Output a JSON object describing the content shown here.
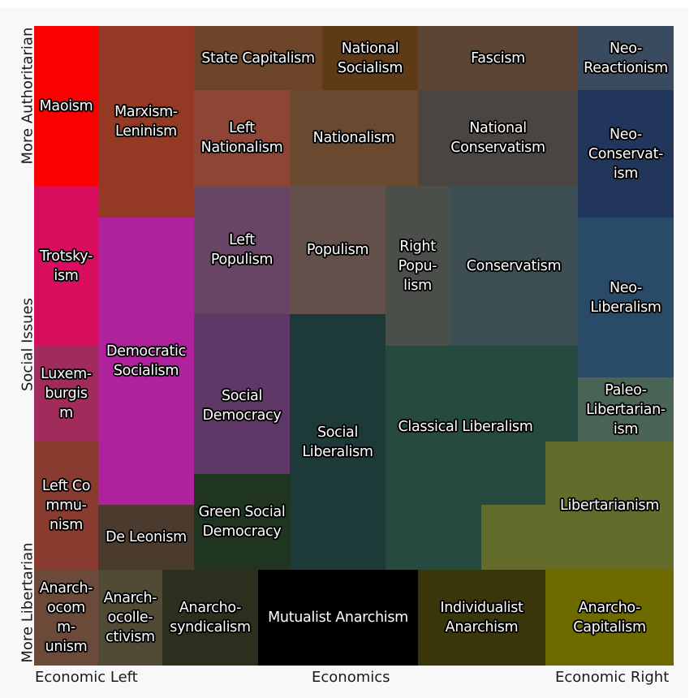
{
  "axes": {
    "y_top": "More Authoritarian",
    "y_mid": "Social Issues",
    "y_bottom": "More Libertarian",
    "x_left": "Economic Left",
    "x_mid": "Economics",
    "x_right": "Economic Right"
  },
  "ideologies": {
    "maoism": {
      "label": "Maoism",
      "color": "#fb0000"
    },
    "marxism_leninism": {
      "label": "Marxism-\nLeninism",
      "color": "#943a24"
    },
    "state_capitalism": {
      "label": "State Capitalism",
      "color": "#6d4529"
    },
    "national_socialism": {
      "label": "National\nSocialism",
      "color": "#5e3a17"
    },
    "fascism": {
      "label": "Fascism",
      "color": "#5c4633"
    },
    "neo_reactionism": {
      "label": "Neo-\nReactionism",
      "color": "#3b4b5f"
    },
    "left_nationalism": {
      "label": "Left\nNationalism",
      "color": "#8f4536"
    },
    "nationalism": {
      "label": "Nationalism",
      "color": "#694a30"
    },
    "national_conservatism": {
      "label": "National\nConservatism",
      "color": "#4a4541"
    },
    "neo_conservatism": {
      "label": "Neo-\nConservat-\nism",
      "color": "#21365a"
    },
    "trotskyism": {
      "label": "Trotsky-\nism",
      "color": "#d80d5e"
    },
    "democratic_socialism": {
      "label": "Democratic\nSocialism",
      "color": "#b0229c"
    },
    "left_populism": {
      "label": "Left\nPopulism",
      "color": "#684565"
    },
    "populism": {
      "label": "Populism",
      "color": "#63504a"
    },
    "right_populism": {
      "label": "Right\nPopu-\nlism",
      "color": "#4b4f49"
    },
    "conservatism": {
      "label": "Conservatism",
      "color": "#3d4e55"
    },
    "neo_liberalism": {
      "label": "Neo-\nLiberalism",
      "color": "#2a4b68"
    },
    "luxemburgism": {
      "label": "Luxem-\nburgis\nm",
      "color": "#a12c5c"
    },
    "social_democracy": {
      "label": "Social\nDemocracy",
      "color": "#5f3868"
    },
    "social_liberalism": {
      "label": "Social\nLiberalism",
      "color": "#1d3a38"
    },
    "classical_liberalism": {
      "label": "Classical Liberalism",
      "color": "#264a40"
    },
    "paleo_libertarianism": {
      "label": "Paleo-\nLibertarian-\nism",
      "color": "#4a6555"
    },
    "libertarianism": {
      "label": "Libertarianism",
      "color": "#636c2b"
    },
    "left_communism": {
      "label": "Left Co\nmmu-\nnism",
      "color": "#8a3b30"
    },
    "de_leonism": {
      "label": "De Leonism",
      "color": "#4b3b2f"
    },
    "green_social_democracy": {
      "label": "Green Social\nDemocracy",
      "color": "#1f3520"
    },
    "anarcho_communism": {
      "label": "Anarch-\nocom\nm-\nunism",
      "color": "#6b4a3a"
    },
    "anarcho_collectivism": {
      "label": "Anarch-\nocolle-\nctivism",
      "color": "#514b36"
    },
    "anarcho_syndicalism": {
      "label": "Anarcho-\nsyndicalism",
      "color": "#2e2e1e"
    },
    "mutualist_anarchism": {
      "label": "Mutualist Anarchism",
      "color": "#000000"
    },
    "individualist_anarchism": {
      "label": "Individualist\nAnarchism",
      "color": "#38360a"
    },
    "anarcho_capitalism": {
      "label": "Anarcho-\nCapitalism",
      "color": "#6d6b00"
    }
  }
}
